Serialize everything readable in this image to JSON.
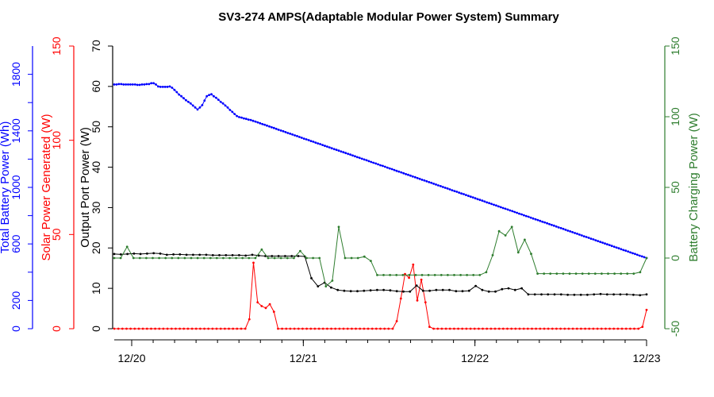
{
  "chart_data": {
    "type": "line",
    "title": "SV3-274 AMPS(Adaptable Modular Power System) Summary",
    "x_ticks": [
      "12/20",
      "12/21",
      "12/22",
      "12/23"
    ],
    "axes": {
      "battery": {
        "label": "Total Battery Power (Wh)",
        "range": [
          0,
          2000
        ],
        "ticks": [
          "0",
          "200",
          "600",
          "1000",
          "1400",
          "1800"
        ],
        "color": "#0000ff"
      },
      "solar": {
        "label": "Solar Power Generated (W)",
        "range": [
          0,
          150
        ],
        "ticks": [
          "0",
          "50",
          "100",
          "150"
        ],
        "color": "#ff0000"
      },
      "output": {
        "label": "Output Port Power (W)",
        "range": [
          0,
          70
        ],
        "ticks": [
          "0",
          "10",
          "20",
          "30",
          "40",
          "50",
          "60",
          "70"
        ],
        "color": "#000000"
      },
      "charging": {
        "label": "Battery Charging Power (W)",
        "range": [
          -50,
          150
        ],
        "ticks": [
          "-50",
          "0",
          "50",
          "100",
          "150"
        ],
        "color": "#2e7d2e"
      }
    },
    "series": [
      {
        "name": "Total Battery Power (Wh)",
        "axis": "battery",
        "color": "#0000ff",
        "values": [
          1728,
          1728,
          1731,
          1731,
          1728,
          1728,
          1728,
          1728,
          1728,
          1728,
          1725,
          1725,
          1728,
          1728,
          1731,
          1731,
          1737,
          1737,
          1728,
          1714,
          1711,
          1711,
          1711,
          1711,
          1714,
          1705,
          1690,
          1674,
          1657,
          1645,
          1631,
          1617,
          1605,
          1594,
          1579,
          1565,
          1551,
          1565,
          1582,
          1614,
          1645,
          1654,
          1659,
          1645,
          1634,
          1620,
          1605,
          1594,
          1579,
          1565,
          1548,
          1534,
          1519,
          1505,
          1497,
          1494,
          1488,
          1485,
          1480,
          1477,
          1471,
          1466,
          1460,
          1454,
          1448,
          1443,
          1437,
          1431,
          1425,
          1420,
          1414,
          1408,
          1402,
          1397,
          1391,
          1385,
          1380,
          1374,
          1368,
          1363,
          1357,
          1351,
          1345,
          1340,
          1334,
          1328,
          1323,
          1317,
          1311,
          1306,
          1300,
          1294,
          1289,
          1283,
          1277,
          1271,
          1266,
          1260,
          1254,
          1249,
          1243,
          1237,
          1232,
          1226,
          1220,
          1214,
          1209,
          1203,
          1197,
          1192,
          1186,
          1180,
          1174,
          1169,
          1163,
          1157,
          1152,
          1146,
          1140,
          1134,
          1129,
          1123,
          1117,
          1112,
          1106,
          1100,
          1094,
          1089,
          1083,
          1077,
          1072,
          1066,
          1060,
          1054,
          1049,
          1043,
          1037,
          1032,
          1026,
          1020,
          1014,
          1009,
          1003,
          997,
          992,
          986,
          980,
          974,
          969,
          963,
          957,
          952,
          946,
          940,
          934,
          929,
          923,
          917,
          912,
          906,
          900,
          894,
          889,
          883,
          877,
          872,
          866,
          860,
          854,
          849,
          843,
          837,
          832,
          826,
          820,
          814,
          809,
          803,
          797,
          792,
          786,
          780,
          774,
          769,
          763,
          757,
          752,
          746,
          740,
          734,
          729,
          723,
          717,
          712,
          706,
          700,
          694,
          689,
          683,
          677,
          672,
          666,
          660,
          654,
          649,
          643,
          637,
          632,
          626,
          620,
          614,
          609,
          603,
          597,
          592,
          586,
          580,
          574,
          569,
          563,
          557,
          552,
          546,
          540,
          534,
          529,
          523,
          517,
          512,
          506,
          500
        ]
      },
      {
        "name": "Solar Power Generated (W)",
        "axis": "solar",
        "color": "#ff0000",
        "values": [
          0,
          0,
          0,
          0,
          0,
          0,
          0,
          0,
          0,
          0,
          0,
          0,
          0,
          0,
          0,
          0,
          0,
          0,
          0,
          0,
          0,
          0,
          0,
          0,
          0,
          0,
          0,
          0,
          0,
          0,
          0,
          0,
          0,
          5,
          35,
          14,
          12,
          11,
          13,
          9,
          0,
          0,
          0,
          0,
          0,
          0,
          0,
          0,
          0,
          0,
          0,
          0,
          0,
          0,
          0,
          0,
          0,
          0,
          0,
          0,
          0,
          0,
          0,
          0,
          0,
          0,
          0,
          0,
          0,
          4,
          16,
          29,
          27,
          34,
          15,
          26,
          14,
          1,
          0,
          0,
          0,
          0,
          0,
          0,
          0,
          0,
          0,
          0,
          0,
          0,
          0,
          0,
          0,
          0,
          0,
          0,
          0,
          0,
          0,
          0,
          0,
          0,
          0,
          0,
          0,
          0,
          0,
          0,
          0,
          0,
          0,
          0,
          0,
          0,
          0,
          0,
          0,
          0,
          0,
          0,
          0,
          0,
          0,
          0,
          0,
          0,
          0,
          0,
          0,
          1,
          10
        ]
      },
      {
        "name": "Output Port Power (W)",
        "axis": "output",
        "color": "#000000",
        "values": [
          18.5,
          18.4,
          18.5,
          18.6,
          18.5,
          18.6,
          18.7,
          18.6,
          18.3,
          18.4,
          18.4,
          18.3,
          18.3,
          18.3,
          18.3,
          18.2,
          18.2,
          18.2,
          18.2,
          18.2,
          18.1,
          18.3,
          18.1,
          18.0,
          18.0,
          18.0,
          18.0,
          18.0,
          18.0,
          17.9,
          12.5,
          10.5,
          11.4,
          10.2,
          9.6,
          9.4,
          9.3,
          9.3,
          9.4,
          9.5,
          9.6,
          9.6,
          9.5,
          9.3,
          9.2,
          9.2,
          10.7,
          9.4,
          9.4,
          9.6,
          9.6,
          9.6,
          9.3,
          9.3,
          9.4,
          10.6,
          9.6,
          9.2,
          9.2,
          9.8,
          10.0,
          9.6,
          10.0,
          8.5,
          8.5,
          8.5,
          8.5,
          8.5,
          8.5,
          8.4,
          8.4,
          8.4,
          8.4,
          8.5,
          8.6,
          8.5,
          8.5,
          8.5,
          8.5,
          8.4,
          8.3,
          8.5
        ]
      },
      {
        "name": "Battery Charging Power (W)",
        "axis": "charging",
        "color": "#2e7d2e",
        "values": [
          0,
          0,
          8,
          0,
          0,
          0,
          0,
          0,
          0,
          0,
          0,
          0,
          0,
          0,
          0,
          0,
          0,
          0,
          0,
          0,
          0,
          0,
          0,
          6,
          0,
          0,
          0,
          0,
          0,
          5,
          0,
          0,
          0,
          -20,
          -16,
          22,
          0,
          0,
          0,
          1,
          -2,
          -12,
          -12,
          -12,
          -12,
          -12,
          -12,
          -12,
          -12,
          -12,
          -12,
          -12,
          -12,
          -12,
          -12,
          -12,
          -12,
          -12,
          -10,
          2,
          19,
          16,
          22,
          4,
          13,
          3,
          -11,
          -11,
          -11,
          -11,
          -11,
          -11,
          -11,
          -11,
          -11,
          -11,
          -11,
          -11,
          -11,
          -11,
          -11,
          -11,
          -10,
          0
        ]
      }
    ]
  }
}
